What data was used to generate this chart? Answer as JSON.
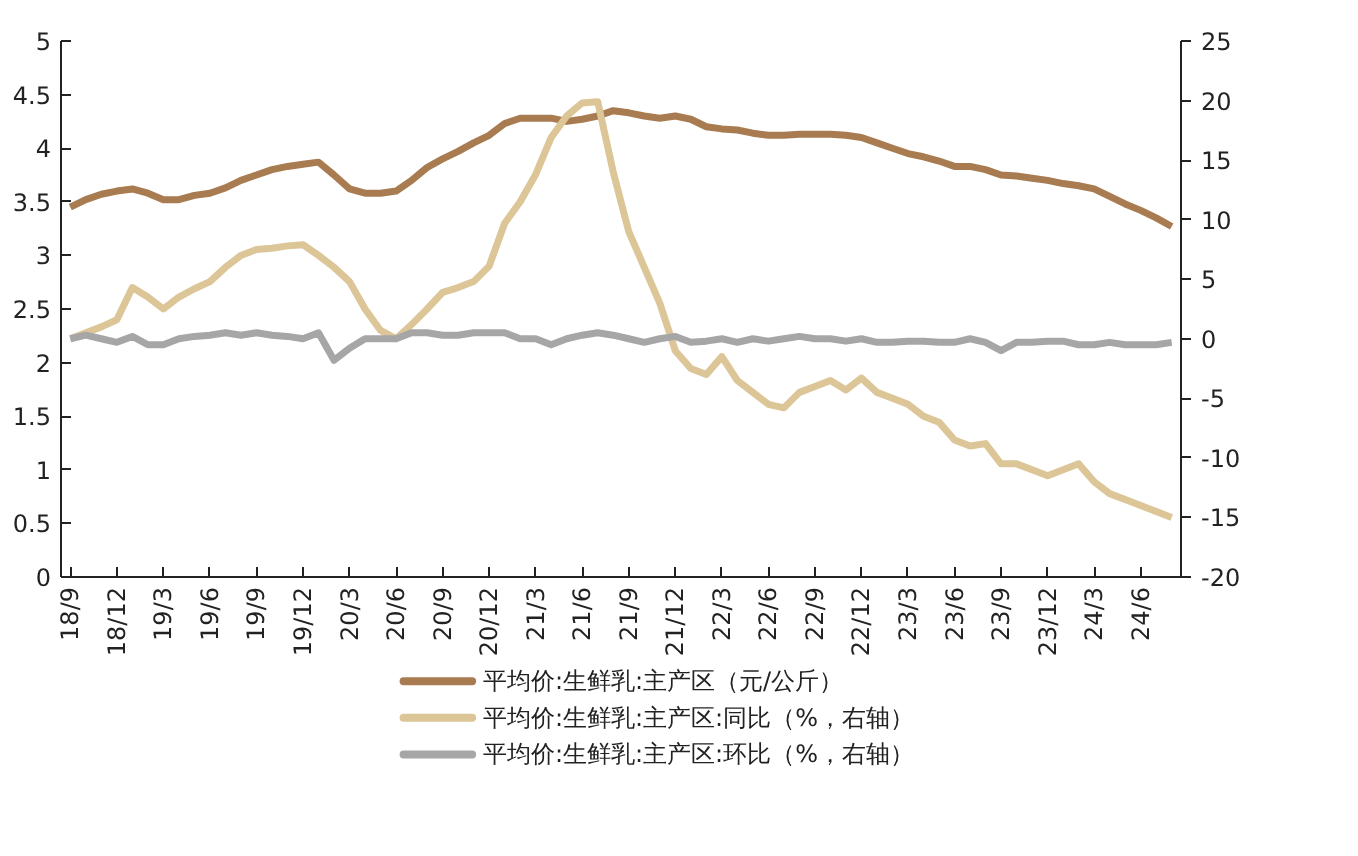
{
  "chart_data": {
    "type": "line",
    "categories": [
      "18/9",
      null,
      null,
      "18/12",
      null,
      null,
      "19/3",
      null,
      null,
      "19/6",
      null,
      null,
      "19/9",
      null,
      null,
      "19/12",
      null,
      null,
      "20/3",
      null,
      null,
      "20/6",
      null,
      null,
      "20/9",
      null,
      null,
      "20/12",
      null,
      null,
      "21/3",
      null,
      null,
      "21/6",
      null,
      null,
      "21/9",
      null,
      null,
      "21/12",
      null,
      null,
      "22/3",
      null,
      null,
      "22/6",
      null,
      null,
      "22/9",
      null,
      null,
      "22/12",
      null,
      null,
      "23/3",
      null,
      null,
      "23/6",
      null,
      null,
      "23/9",
      null,
      null,
      "23/12",
      null,
      null,
      "24/3",
      null,
      null,
      "24/6",
      null,
      null
    ],
    "series": [
      {
        "name": "平均价:生鲜乳:主产区（元/公斤）",
        "color": "#a87c50",
        "values": [
          3.45,
          3.52,
          3.57,
          3.6,
          3.62,
          3.58,
          3.52,
          3.52,
          3.56,
          3.58,
          3.63,
          3.7,
          3.75,
          3.8,
          3.83,
          3.85,
          3.87,
          3.75,
          3.62,
          3.58,
          3.58,
          3.6,
          3.7,
          3.82,
          3.9,
          3.97,
          4.05,
          4.12,
          4.23,
          4.28,
          4.28,
          4.28,
          4.25,
          4.27,
          4.3,
          4.35,
          4.33,
          4.3,
          4.28,
          4.3,
          4.27,
          4.2,
          4.18,
          4.17,
          4.14,
          4.12,
          4.12,
          4.13,
          4.13,
          4.13,
          4.12,
          4.1,
          4.05,
          4.0,
          3.95,
          3.92,
          3.88,
          3.83,
          3.83,
          3.8,
          3.75,
          3.74,
          3.72,
          3.7,
          3.67,
          3.65,
          3.62,
          3.55,
          3.48,
          3.42,
          3.35,
          3.27
        ]
      },
      {
        "name": "平均价:生鲜乳:主产区:同比（%，右轴）",
        "color": "#dcc596",
        "axis": "y2",
        "values": [
          0,
          0.5,
          1,
          1.6,
          4.3,
          3.5,
          2.5,
          3.5,
          4.2,
          4.8,
          6,
          7,
          7.5,
          7.6,
          7.8,
          7.9,
          7,
          6,
          4.8,
          2.5,
          0.7,
          0,
          1.2,
          2.5,
          3.9,
          4.3,
          4.8,
          6.1,
          9.7,
          11.5,
          13.8,
          16.9,
          18.7,
          19.8,
          19.9,
          14,
          9,
          6,
          3,
          -1,
          -2.5,
          -3,
          -1.5,
          -3.5,
          -4.5,
          -5.5,
          -5.8,
          -4.5,
          -4,
          -3.5,
          -4.3,
          -3.3,
          -4.5,
          -5,
          -5.5,
          -6.5,
          -7,
          -8.5,
          -9,
          -8.8,
          -10.5,
          -10.5,
          -11,
          -11.5,
          -11,
          -10.5,
          -12,
          -13,
          -13.5,
          -14,
          -14.5,
          -15
        ]
      },
      {
        "name": "平均价:生鲜乳:主产区:环比（%，右轴）",
        "color": "#a6a6a6",
        "axis": "y2",
        "values": [
          0,
          0.3,
          0,
          -0.3,
          0.2,
          -0.5,
          -0.5,
          0,
          0.2,
          0.3,
          0.5,
          0.3,
          0.5,
          0.3,
          0.2,
          0,
          0.5,
          -1.8,
          -0.8,
          0,
          0,
          0,
          0.5,
          0.5,
          0.3,
          0.3,
          0.5,
          0.5,
          0.5,
          0,
          0,
          -0.5,
          0,
          0.3,
          0.5,
          0.3,
          0,
          -0.3,
          0,
          0.2,
          -0.3,
          -0.2,
          0,
          -0.3,
          0,
          -0.2,
          0,
          0.2,
          0,
          0,
          -0.2,
          0,
          -0.3,
          -0.3,
          -0.2,
          -0.2,
          -0.3,
          -0.3,
          0,
          -0.3,
          -1,
          -0.3,
          -0.3,
          -0.2,
          -0.2,
          -0.5,
          -0.5,
          -0.3,
          -0.5,
          -0.5,
          -0.5,
          -0.3
        ]
      }
    ],
    "ylim": [
      0,
      5
    ],
    "yticks": [
      0,
      0.5,
      1,
      1.5,
      2,
      2.5,
      3,
      3.5,
      4,
      4.5,
      5
    ],
    "y2lim": [
      -20,
      25
    ],
    "y2ticks": [
      -20,
      -15,
      -10,
      -5,
      0,
      5,
      10,
      15,
      20,
      25
    ],
    "grid": false,
    "legend": "bottom"
  }
}
